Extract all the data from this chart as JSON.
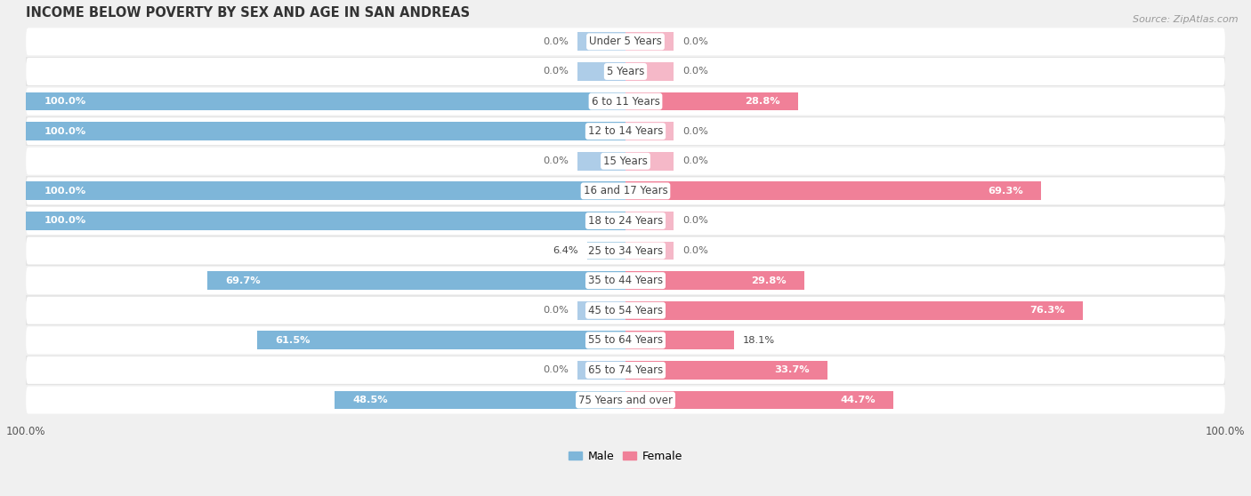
{
  "title": "INCOME BELOW POVERTY BY SEX AND AGE IN SAN ANDREAS",
  "source": "Source: ZipAtlas.com",
  "categories": [
    "Under 5 Years",
    "5 Years",
    "6 to 11 Years",
    "12 to 14 Years",
    "15 Years",
    "16 and 17 Years",
    "18 to 24 Years",
    "25 to 34 Years",
    "35 to 44 Years",
    "45 to 54 Years",
    "55 to 64 Years",
    "65 to 74 Years",
    "75 Years and over"
  ],
  "male": [
    0.0,
    0.0,
    100.0,
    100.0,
    0.0,
    100.0,
    100.0,
    6.4,
    69.7,
    0.0,
    61.5,
    0.0,
    48.5
  ],
  "female": [
    0.0,
    0.0,
    28.8,
    0.0,
    0.0,
    69.3,
    0.0,
    0.0,
    29.8,
    76.3,
    18.1,
    33.7,
    44.7
  ],
  "male_color_strong": "#7EB6D9",
  "male_color_light": "#AECDE8",
  "female_color_strong": "#F08098",
  "female_color_light": "#F5B8C8",
  "row_bg_light": "#F0F0F0",
  "row_bg_dark": "#E4E4E4",
  "xlim": 100.0,
  "bar_height": 0.62,
  "stub_size": 8.0,
  "legend_male": "Male",
  "legend_female": "Female",
  "title_fontsize": 10.5,
  "label_fontsize": 8.2,
  "tick_fontsize": 8.5,
  "category_fontsize": 8.5,
  "source_fontsize": 8
}
